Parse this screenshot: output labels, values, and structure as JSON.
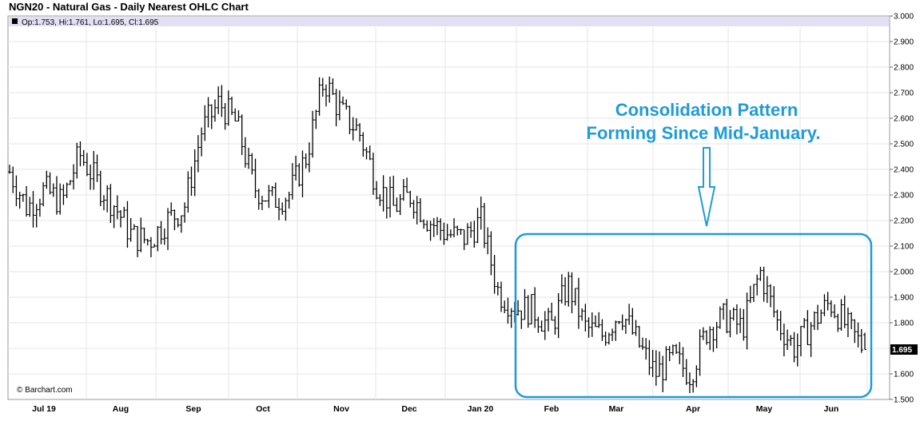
{
  "title": "NGN20 - Natural Gas - Daily Nearest OHLC Chart",
  "ohlc_readout": "Op:1.753, Hi:1.761, Lo:1.695, Cl:1.695",
  "credit": "© Barchart.com",
  "last_price_label": "1.695",
  "annotation": {
    "line1": "Consolidation Pattern",
    "line2": "Forming Since Mid-January."
  },
  "colors": {
    "annotation": "#1f9bd9",
    "bars": "#000000",
    "grid": "#e6e6e6",
    "header_band": "#e3e0f5"
  },
  "chart_data": {
    "type": "ohlc",
    "title": "NGN20 - Natural Gas - Daily Nearest OHLC Chart",
    "ylim": [
      1.5,
      3.0
    ],
    "y_ticks": [
      "1.500",
      "1.600",
      "1.700",
      "1.800",
      "1.900",
      "2.000",
      "2.100",
      "2.200",
      "2.300",
      "2.400",
      "2.500",
      "2.600",
      "2.700",
      "2.800",
      "2.900",
      "3.000"
    ],
    "x_labels": [
      "Jul 19",
      "Aug",
      "Sep",
      "Oct",
      "Nov",
      "Dec",
      "Jan 20",
      "Feb",
      "Mar",
      "Apr",
      "May",
      "Jun"
    ],
    "grid": true,
    "y_axis": "right",
    "last": {
      "open": 1.753,
      "high": 1.761,
      "low": 1.695,
      "close": 1.695
    },
    "series_close": [
      [
        "2019-07-01",
        2.39
      ],
      [
        "2019-07-08",
        2.25
      ],
      [
        "2019-07-15",
        2.32
      ],
      [
        "2019-07-22",
        2.27
      ],
      [
        "2019-07-29",
        2.46
      ],
      [
        "2019-08-05",
        2.35
      ],
      [
        "2019-08-12",
        2.26
      ],
      [
        "2019-08-19",
        2.14
      ],
      [
        "2019-08-26",
        2.12
      ],
      [
        "2019-09-02",
        2.2
      ],
      [
        "2019-09-09",
        2.25
      ],
      [
        "2019-09-16",
        2.55
      ],
      [
        "2019-09-23",
        2.66
      ],
      [
        "2019-09-30",
        2.58
      ],
      [
        "2019-10-07",
        2.33
      ],
      [
        "2019-10-14",
        2.28
      ],
      [
        "2019-10-21",
        2.3
      ],
      [
        "2019-10-28",
        2.45
      ],
      [
        "2019-11-04",
        2.75
      ],
      [
        "2019-11-11",
        2.62
      ],
      [
        "2019-11-18",
        2.55
      ],
      [
        "2019-12-02",
        2.35
      ],
      [
        "2019-12-09",
        2.25
      ],
      [
        "2019-12-16",
        2.3
      ],
      [
        "2019-12-23",
        2.2
      ],
      [
        "2019-12-30",
        2.15
      ],
      [
        "2020-01-06",
        2.13
      ],
      [
        "2020-01-13",
        2.2
      ],
      [
        "2020-01-20",
        1.92
      ],
      [
        "2020-01-27",
        1.86
      ],
      [
        "2020-02-03",
        1.85
      ],
      [
        "2020-02-10",
        1.78
      ],
      [
        "2020-02-17",
        1.95
      ],
      [
        "2020-02-24",
        1.78
      ],
      [
        "2020-03-02",
        1.75
      ],
      [
        "2020-03-09",
        1.85
      ],
      [
        "2020-03-16",
        1.72
      ],
      [
        "2020-03-23",
        1.6
      ],
      [
        "2020-03-30",
        1.66
      ],
      [
        "2020-04-06",
        1.6
      ],
      [
        "2020-04-13",
        1.78
      ],
      [
        "2020-04-20",
        1.82
      ],
      [
        "2020-04-27",
        1.78
      ],
      [
        "2020-05-04",
        2.0
      ],
      [
        "2020-05-11",
        1.8
      ],
      [
        "2020-05-18",
        1.7
      ],
      [
        "2020-05-25",
        1.8
      ],
      [
        "2020-06-01",
        1.88
      ],
      [
        "2020-06-08",
        1.78
      ],
      [
        "2020-06-15",
        1.695
      ]
    ]
  }
}
